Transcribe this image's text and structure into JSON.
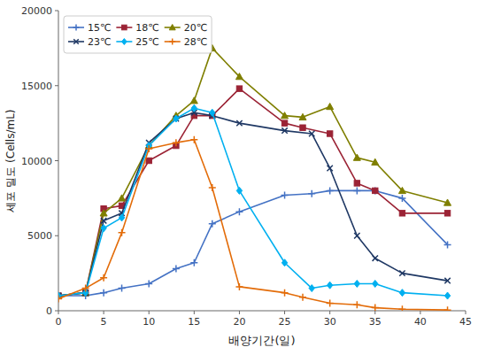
{
  "chart_data": {
    "type": "line",
    "xlabel": "배양기간(일)",
    "ylabel": "세포 밀도 (Cells/mL)",
    "xlim": [
      0,
      45
    ],
    "ylim": [
      0,
      20000
    ],
    "xticks": [
      0,
      5,
      10,
      15,
      20,
      25,
      30,
      35,
      40,
      45
    ],
    "yticks": [
      0,
      5000,
      10000,
      15000,
      20000
    ],
    "grid": false,
    "legend": "upper left",
    "series": [
      {
        "name": "15℃",
        "color": "#4472C4",
        "marker": "plus",
        "x": [
          0,
          3,
          5,
          7,
          10,
          13,
          15,
          17,
          20,
          25,
          28,
          30,
          33,
          35,
          38,
          43
        ],
        "values": [
          1000,
          1000,
          1200,
          1500,
          1800,
          2800,
          3200,
          5800,
          6600,
          7700,
          7800,
          8000,
          8000,
          8000,
          7500,
          4400
        ]
      },
      {
        "name": "18℃",
        "color": "#9B2335",
        "marker": "square",
        "x": [
          0,
          3,
          5,
          7,
          10,
          13,
          15,
          17,
          20,
          25,
          27,
          30,
          33,
          35,
          38,
          43
        ],
        "values": [
          1000,
          1200,
          6800,
          7000,
          10000,
          11000,
          13000,
          13000,
          14800,
          12500,
          12200,
          11800,
          8500,
          8000,
          6500,
          6500
        ]
      },
      {
        "name": "20℃",
        "color": "#7F7F00",
        "marker": "triangle",
        "x": [
          0,
          3,
          5,
          7,
          10,
          13,
          15,
          17,
          20,
          25,
          27,
          30,
          33,
          35,
          38,
          43
        ],
        "values": [
          1000,
          1200,
          6500,
          7500,
          11000,
          13000,
          14000,
          17500,
          15600,
          13000,
          12900,
          13600,
          10200,
          9900,
          8000,
          7200
        ]
      },
      {
        "name": "23℃",
        "color": "#1F3864",
        "marker": "x",
        "x": [
          0,
          3,
          5,
          7,
          10,
          13,
          15,
          17,
          20,
          25,
          28,
          30,
          33,
          35,
          38,
          43
        ],
        "values": [
          1000,
          1200,
          6000,
          6500,
          11200,
          12800,
          13200,
          13000,
          12500,
          12000,
          11800,
          9500,
          5000,
          3500,
          2500,
          2000
        ]
      },
      {
        "name": "25℃",
        "color": "#00B0F0",
        "marker": "diamond",
        "x": [
          0,
          3,
          5,
          7,
          10,
          13,
          15,
          17,
          20,
          25,
          28,
          30,
          33,
          35,
          38,
          43
        ],
        "values": [
          1000,
          1200,
          5500,
          6200,
          11000,
          12800,
          13500,
          13200,
          8000,
          3200,
          1500,
          1700,
          1800,
          1800,
          1200,
          1000
        ]
      },
      {
        "name": "28℃",
        "color": "#E36C09",
        "marker": "plus",
        "x": [
          0,
          3,
          5,
          7,
          10,
          13,
          15,
          17,
          20,
          25,
          27,
          30,
          33,
          35,
          38,
          43
        ],
        "values": [
          800,
          1500,
          2200,
          5200,
          10800,
          11200,
          11400,
          8200,
          1600,
          1200,
          900,
          500,
          400,
          200,
          100,
          50
        ]
      }
    ]
  }
}
